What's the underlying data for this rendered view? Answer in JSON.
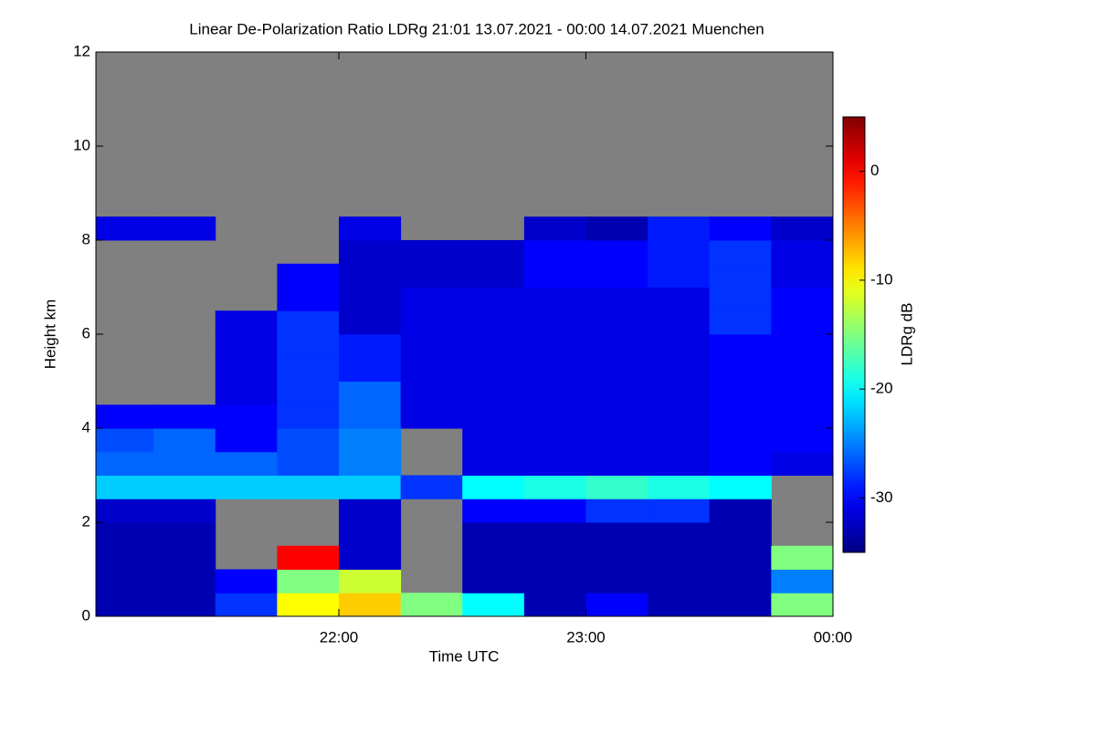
{
  "chart_data": {
    "type": "heatmap",
    "title": "Linear De-Polarization Ratio LDRg   21:01 13.07.2021 - 00:00 14.07.2021 Muenchen",
    "xlabel": "Time UTC",
    "ylabel": "Height km",
    "colorbar_label": "LDRg dB",
    "colormap": "jet",
    "xlim": [
      21.0167,
      24
    ],
    "xticks": [
      {
        "value": 22,
        "label": "22:00"
      },
      {
        "value": 23,
        "label": "23:00"
      },
      {
        "value": 24,
        "label": "00:00"
      }
    ],
    "ylim": [
      0,
      12
    ],
    "yticks": [
      0,
      2,
      4,
      6,
      8,
      10,
      12
    ],
    "clim": [
      -35,
      5
    ],
    "cticks": [
      0,
      -10,
      -20,
      -30
    ],
    "x": [
      21.0,
      21.25,
      21.5,
      21.75,
      22.0,
      22.25,
      22.5,
      22.75,
      23.0,
      23.25,
      23.5,
      23.75
    ],
    "y": [
      0,
      0.5,
      1,
      1.5,
      2,
      2.5,
      3,
      3.5,
      4,
      4.5,
      5,
      5.5,
      6,
      6.5,
      7,
      7.5,
      8
    ],
    "z": [
      [
        -33,
        -33,
        -28,
        -10,
        -8,
        -15,
        -20,
        -33,
        -30,
        -33,
        -33,
        -15
      ],
      [
        -33,
        -33,
        -30,
        -15,
        -12,
        null,
        -33,
        -33,
        -33,
        -33,
        -33,
        -25
      ],
      [
        -33,
        -33,
        null,
        0,
        -32,
        null,
        -33,
        -33,
        -33,
        -33,
        -33,
        -15
      ],
      [
        -33,
        -33,
        null,
        null,
        -32,
        null,
        -33,
        -33,
        -33,
        -33,
        -33,
        null
      ],
      [
        -32,
        -32,
        null,
        null,
        -32,
        null,
        -30,
        -30,
        -28,
        -28,
        -33,
        null
      ],
      [
        -22,
        -22,
        -22,
        -22,
        -22,
        -28,
        -20,
        -19,
        -18,
        -19,
        -20,
        null
      ],
      [
        -26,
        -26,
        -26,
        -27,
        -25,
        null,
        -31,
        -31,
        -31,
        -31,
        -30,
        -31
      ],
      [
        -27,
        -26,
        -30,
        -27,
        -25,
        null,
        -31,
        -31,
        -31,
        -31,
        -30,
        -30
      ],
      [
        -30,
        -30,
        -30,
        -28,
        -26,
        -31,
        -31,
        -31,
        -31,
        -31,
        -30,
        -30
      ],
      [
        null,
        null,
        -31,
        -28,
        -26,
        -31,
        -31,
        -31,
        -31,
        -31,
        -30,
        -30
      ],
      [
        null,
        null,
        -31,
        -28,
        -29,
        -31,
        -31,
        -31,
        -31,
        -31,
        -30,
        -30
      ],
      [
        null,
        null,
        -31,
        -28,
        -29,
        -31,
        -31,
        -31,
        -31,
        -31,
        -30,
        -30
      ],
      [
        null,
        null,
        -31,
        -28,
        -32,
        -31,
        -31,
        -31,
        -31,
        -31,
        -28,
        -30
      ],
      [
        null,
        null,
        null,
        -30,
        -32,
        -31,
        -31,
        -31,
        -31,
        -31,
        -28,
        -30
      ],
      [
        null,
        null,
        null,
        -30,
        -32,
        -32,
        -32,
        -30,
        -30,
        -29,
        -28,
        -31
      ],
      [
        null,
        null,
        null,
        null,
        -32,
        -32,
        -32,
        -30,
        -30,
        -29,
        -28,
        -31
      ],
      [
        -31,
        -31,
        null,
        null,
        -31,
        null,
        null,
        -32,
        -33,
        -29,
        -30,
        -32
      ]
    ]
  }
}
